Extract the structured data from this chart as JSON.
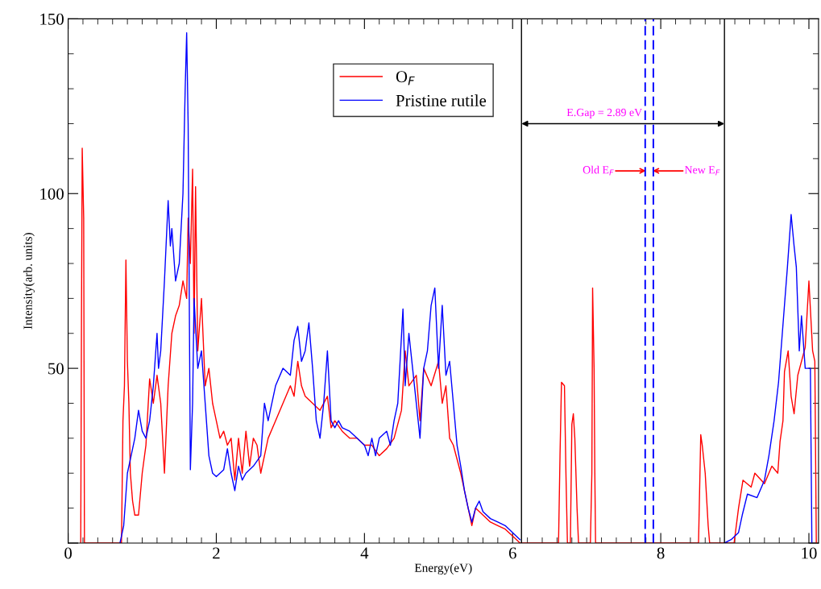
{
  "chart_data": {
    "type": "line",
    "xlabel": "Energy(eV)",
    "ylabel": "Intensity(arb. units)",
    "xlim": [
      0,
      10.13
    ],
    "ylim": [
      0,
      150
    ],
    "xticks": [
      0,
      2,
      4,
      6,
      8,
      10
    ],
    "yticks": [
      {
        "value": 0,
        "label": null
      },
      50,
      100,
      150
    ],
    "grid": false,
    "legend": "top",
    "marker": "none",
    "line_style": "solid",
    "series": [
      {
        "name": "O$_{F}$",
        "color": "#ff0000",
        "x": [
          0.17,
          0.18,
          0.19,
          0.21,
          0.22,
          0.72,
          0.74,
          0.76,
          0.78,
          0.8,
          0.82,
          0.84,
          0.87,
          0.9,
          0.95,
          1.0,
          1.05,
          1.1,
          1.15,
          1.2,
          1.25,
          1.3,
          1.35,
          1.4,
          1.45,
          1.5,
          1.55,
          1.6,
          1.62,
          1.65,
          1.68,
          1.7,
          1.72,
          1.75,
          1.8,
          1.85,
          1.9,
          1.95,
          2.0,
          2.05,
          2.1,
          2.15,
          2.2,
          2.25,
          2.3,
          2.35,
          2.4,
          2.45,
          2.5,
          2.55,
          2.6,
          2.7,
          2.8,
          2.9,
          3.0,
          3.05,
          3.1,
          3.15,
          3.2,
          3.3,
          3.4,
          3.5,
          3.55,
          3.6,
          3.7,
          3.8,
          3.9,
          4.0,
          4.1,
          4.2,
          4.3,
          4.4,
          4.5,
          4.55,
          4.6,
          4.7,
          4.75,
          4.8,
          4.9,
          5.0,
          5.05,
          5.1,
          5.15,
          5.2,
          5.3,
          5.35,
          5.4,
          5.45,
          5.5,
          5.6,
          5.7,
          5.8,
          5.9,
          6.0,
          6.1,
          6.62,
          6.64,
          6.66,
          6.7,
          6.72,
          6.74,
          6.78,
          6.8,
          6.82,
          6.84,
          6.87,
          6.89,
          7.05,
          7.07,
          7.08,
          7.1,
          7.11,
          7.12,
          8.51,
          8.54,
          8.56,
          8.6,
          8.64,
          8.66,
          8.99,
          9.05,
          9.11,
          9.22,
          9.27,
          9.4,
          9.5,
          9.58,
          9.61,
          9.65,
          9.67,
          9.72,
          9.76,
          9.8,
          9.85,
          9.95,
          10.0,
          10.05,
          10.08,
          10.1
        ],
        "values": [
          0,
          64,
          113,
          93,
          0,
          0,
          35,
          45,
          81,
          52,
          40,
          20,
          12,
          8,
          8,
          20,
          28,
          47,
          40,
          48,
          40,
          20,
          45,
          60,
          65,
          68,
          75,
          70,
          93,
          80,
          107,
          60,
          102,
          55,
          70,
          45,
          50,
          40,
          35,
          30,
          32,
          28,
          30,
          18,
          30,
          20,
          32,
          22,
          30,
          28,
          20,
          30,
          35,
          40,
          45,
          42,
          52,
          45,
          42,
          40,
          38,
          42,
          33,
          35,
          32,
          30,
          30,
          28,
          28,
          25,
          27,
          30,
          38,
          55,
          45,
          48,
          35,
          50,
          45,
          52,
          40,
          45,
          30,
          28,
          20,
          15,
          10,
          5,
          10,
          8,
          6,
          5,
          4,
          2,
          0,
          0,
          25,
          46,
          45,
          20,
          0,
          0,
          34,
          37,
          30,
          10,
          0,
          0,
          20,
          73,
          50,
          20,
          0,
          0,
          31,
          28,
          20,
          5,
          0,
          0,
          10,
          18,
          16,
          20,
          17,
          22,
          20,
          29,
          35,
          49,
          55,
          42,
          37,
          48,
          56,
          75,
          55,
          52,
          0
        ]
      },
      {
        "name": "Pristine rutile",
        "color": "#0000ff",
        "x": [
          0.7,
          0.75,
          0.8,
          0.85,
          0.9,
          0.95,
          1.0,
          1.05,
          1.1,
          1.15,
          1.2,
          1.22,
          1.25,
          1.3,
          1.35,
          1.38,
          1.4,
          1.45,
          1.5,
          1.55,
          1.58,
          1.6,
          1.62,
          1.65,
          1.68,
          1.7,
          1.75,
          1.8,
          1.85,
          1.9,
          1.95,
          2.0,
          2.1,
          2.15,
          2.2,
          2.25,
          2.3,
          2.35,
          2.4,
          2.5,
          2.6,
          2.65,
          2.7,
          2.8,
          2.9,
          3.0,
          3.05,
          3.1,
          3.15,
          3.2,
          3.25,
          3.3,
          3.35,
          3.4,
          3.45,
          3.5,
          3.55,
          3.6,
          3.65,
          3.7,
          3.8,
          3.9,
          4.0,
          4.05,
          4.1,
          4.15,
          4.2,
          4.3,
          4.35,
          4.4,
          4.45,
          4.52,
          4.55,
          4.6,
          4.65,
          4.75,
          4.8,
          4.85,
          4.9,
          4.95,
          5.0,
          5.05,
          5.1,
          5.15,
          5.2,
          5.25,
          5.3,
          5.35,
          5.4,
          5.45,
          5.5,
          5.55,
          5.6,
          5.7,
          5.8,
          5.9,
          6.0,
          6.1,
          7.0,
          8.86,
          8.95,
          9.05,
          9.1,
          9.17,
          9.3,
          9.4,
          9.46,
          9.53,
          9.59,
          9.67,
          9.71,
          9.76,
          9.8,
          9.83,
          9.87,
          9.9,
          9.95,
          10.0,
          10.02,
          10.04
        ],
        "values": [
          0,
          5,
          20,
          25,
          30,
          38,
          32,
          30,
          35,
          45,
          60,
          50,
          55,
          75,
          98,
          85,
          90,
          75,
          80,
          100,
          130,
          146,
          120,
          21,
          40,
          70,
          50,
          55,
          40,
          25,
          20,
          19,
          21,
          27,
          20,
          15,
          22,
          18,
          20,
          22,
          25,
          40,
          35,
          45,
          50,
          48,
          58,
          62,
          52,
          55,
          63,
          50,
          35,
          30,
          40,
          55,
          35,
          33,
          35,
          33,
          32,
          30,
          28,
          25,
          30,
          25,
          30,
          32,
          28,
          35,
          40,
          67,
          45,
          60,
          50,
          30,
          50,
          55,
          68,
          73,
          50,
          68,
          48,
          52,
          40,
          28,
          22,
          15,
          10,
          6,
          10,
          12,
          9,
          7,
          6,
          5,
          3,
          1,
          null,
          0,
          1,
          3,
          8,
          14,
          13,
          18,
          25,
          35,
          46,
          68,
          79,
          94,
          85,
          79,
          55,
          65,
          50,
          50,
          50,
          0
        ]
      }
    ],
    "ref_lines": [
      {
        "axis": "x",
        "value": 6.12,
        "color": "#000000",
        "line_style": "solid"
      },
      {
        "axis": "x",
        "value": 8.86,
        "color": "#000000",
        "line_style": "solid"
      },
      {
        "axis": "x",
        "value": 7.79,
        "color": "#0000ff",
        "line_style": "dashed"
      },
      {
        "axis": "x",
        "value": 7.9,
        "color": "#0000ff",
        "line_style": "dashed"
      }
    ],
    "annotations": [
      "E.Gap = 2.89 eV",
      "Old E$_{F}$",
      "New E$_{F}$"
    ]
  }
}
